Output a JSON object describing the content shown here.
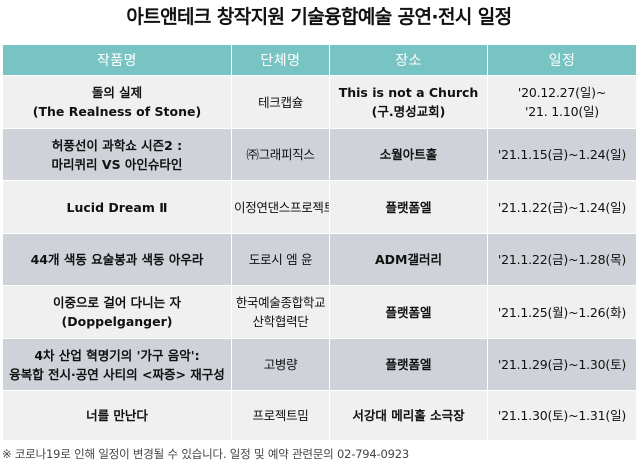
{
  "title": "아트앤테크 창작지원 기술융합예술 공연·전시 일정",
  "headers": {
    "work": "작품명",
    "org": "단체명",
    "place": "장소",
    "date": "일정"
  },
  "rows": [
    {
      "work": [
        "돌의 실제",
        "(The Realness of Stone)"
      ],
      "org": [
        "테크캡슐"
      ],
      "place": [
        "This is not a Church",
        "(구.명성교회)"
      ],
      "date": [
        "'20.12.27(일)~",
        "'21. 1.10(일)"
      ]
    },
    {
      "work": [
        "허풍선이 과학쇼 시즌2 :",
        "마리퀴리 VS 아인슈타인"
      ],
      "org": [
        "㈜그래피직스"
      ],
      "place": [
        "소월아트홀"
      ],
      "date": [
        "'21.1.15(금)~1.24(일)"
      ]
    },
    {
      "work": [
        "Lucid Dream Ⅱ"
      ],
      "org": [
        "이정연댄스프로젝트"
      ],
      "place": [
        "플랫폼엘"
      ],
      "date": [
        "'21.1.22(금)~1.24(일)"
      ]
    },
    {
      "work": [
        "44개 색동 요술봉과 색동 아우라"
      ],
      "org": [
        "도로시 엠 윤"
      ],
      "place": [
        "ADM갤러리"
      ],
      "date": [
        "'21.1.22(금)~1.28(목)"
      ]
    },
    {
      "work": [
        "이중으로 걸어 다니는 자",
        "(Doppelganger)"
      ],
      "org": [
        "한국예술종합학교",
        "산학협력단"
      ],
      "place": [
        "플랫폼엘"
      ],
      "date": [
        "'21.1.25(월)~1.26(화)"
      ]
    },
    {
      "work": [
        "4차 산업 혁명기의 '가구 음악':",
        "융복합 전시·공연 사티의 <짜증> 재구성"
      ],
      "org": [
        "고병량"
      ],
      "place": [
        "플랫폼엘"
      ],
      "date": [
        "'21.1.29(금)~1.30(토)"
      ]
    },
    {
      "work": [
        "너를 만난다"
      ],
      "org": [
        "프로젝트밈"
      ],
      "place": [
        "서강대 메리홀 소극장"
      ],
      "date": [
        "'21.1.30(토)~1.31(일)"
      ]
    }
  ],
  "footnote": "※ 코로나19로 인해 일정이 변경될 수 있습니다. 일정 및 예약 관련문의 02-794-0923",
  "colors": {
    "header_bg": "#78c3c3",
    "row_light": "#f0f0f0",
    "row_dark": "#cfd3d9"
  }
}
